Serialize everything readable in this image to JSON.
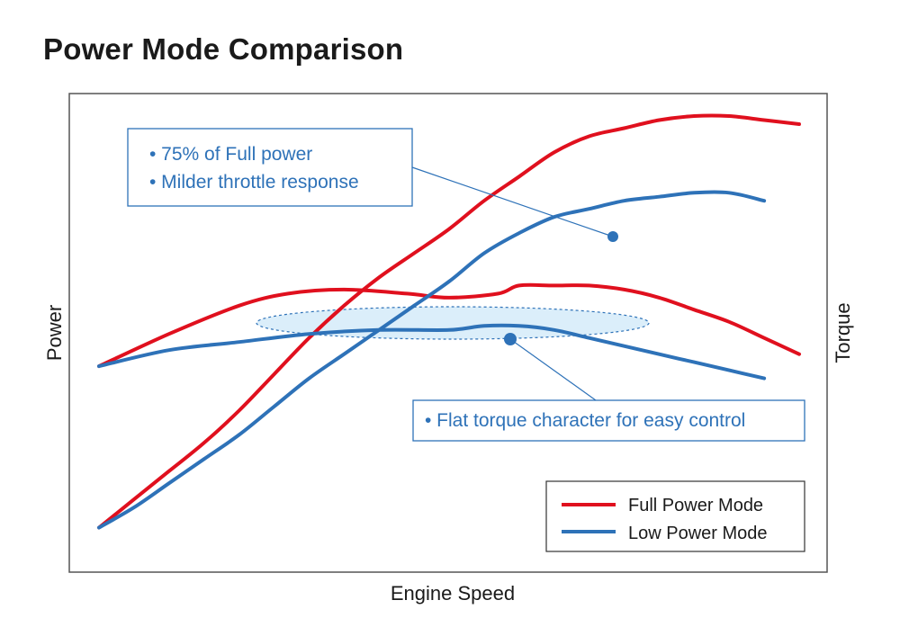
{
  "title": "Power Mode Comparison",
  "colors": {
    "full": "#e0101e",
    "low": "#2e72b8",
    "frame": "#555555",
    "band_fill": "#cfe8f8"
  },
  "chart_data": {
    "type": "line",
    "title": "Power Mode Comparison",
    "xlabel": "Engine Speed",
    "ylabel": "Power",
    "ylabel_right": "Torque",
    "x_ticks": "none",
    "y_ticks": "none",
    "grid": false,
    "legend_position": "bottom-right",
    "xlim": [
      0,
      100
    ],
    "ylim": [
      0,
      100
    ],
    "series": [
      {
        "name": "Full Power Mode",
        "color": "#e0101e",
        "quantity": "power",
        "x": [
          0,
          5,
          10,
          15,
          20,
          25,
          30,
          35,
          40,
          45,
          50,
          55,
          60,
          65,
          70,
          75,
          80,
          85,
          90,
          95,
          100
        ],
        "y": [
          3,
          10,
          17,
          24,
          32,
          41,
          50,
          58,
          65,
          71,
          77,
          84,
          90,
          96,
          100,
          102,
          104,
          105,
          105,
          104,
          103
        ]
      },
      {
        "name": "Full Power Mode",
        "color": "#e0101e",
        "quantity": "torque",
        "x": [
          0,
          10,
          20,
          27,
          35,
          44,
          50,
          57,
          60,
          65,
          70,
          75,
          80,
          85,
          90,
          95,
          100
        ],
        "y": [
          43,
          51,
          58,
          61,
          62,
          61,
          60,
          61,
          63,
          63,
          63,
          62,
          60,
          57,
          54,
          50,
          46
        ]
      },
      {
        "name": "Low Power Mode",
        "color": "#2e72b8",
        "quantity": "power",
        "x": [
          0,
          5,
          10,
          15,
          20,
          25,
          30,
          35,
          40,
          45,
          50,
          55,
          60,
          65,
          70,
          75,
          80,
          85,
          90,
          95
        ],
        "y": [
          3,
          8,
          14,
          20,
          26,
          33,
          40,
          46,
          52,
          58,
          64,
          71,
          76,
          80,
          82,
          84,
          85,
          86,
          86,
          84
        ]
      },
      {
        "name": "Low Power Mode",
        "color": "#2e72b8",
        "quantity": "torque",
        "x": [
          0,
          10,
          20,
          30,
          40,
          50,
          55,
          60,
          65,
          70,
          75,
          80,
          85,
          90,
          95
        ],
        "y": [
          43,
          47,
          49,
          51,
          52,
          52,
          53,
          53,
          52,
          50,
          48,
          46,
          44,
          42,
          40
        ]
      }
    ],
    "annotations": [
      {
        "id": "power_note",
        "lines": [
          "• 75% of Full power",
          "• Milder throttle response"
        ],
        "target": "Low Power Mode power curve"
      },
      {
        "id": "torque_note",
        "lines": [
          "• Flat torque character for easy control"
        ],
        "target": "Low Power Mode torque curve (flat band)"
      }
    ],
    "legend": [
      "Full Power Mode",
      "Low Power Mode"
    ]
  }
}
